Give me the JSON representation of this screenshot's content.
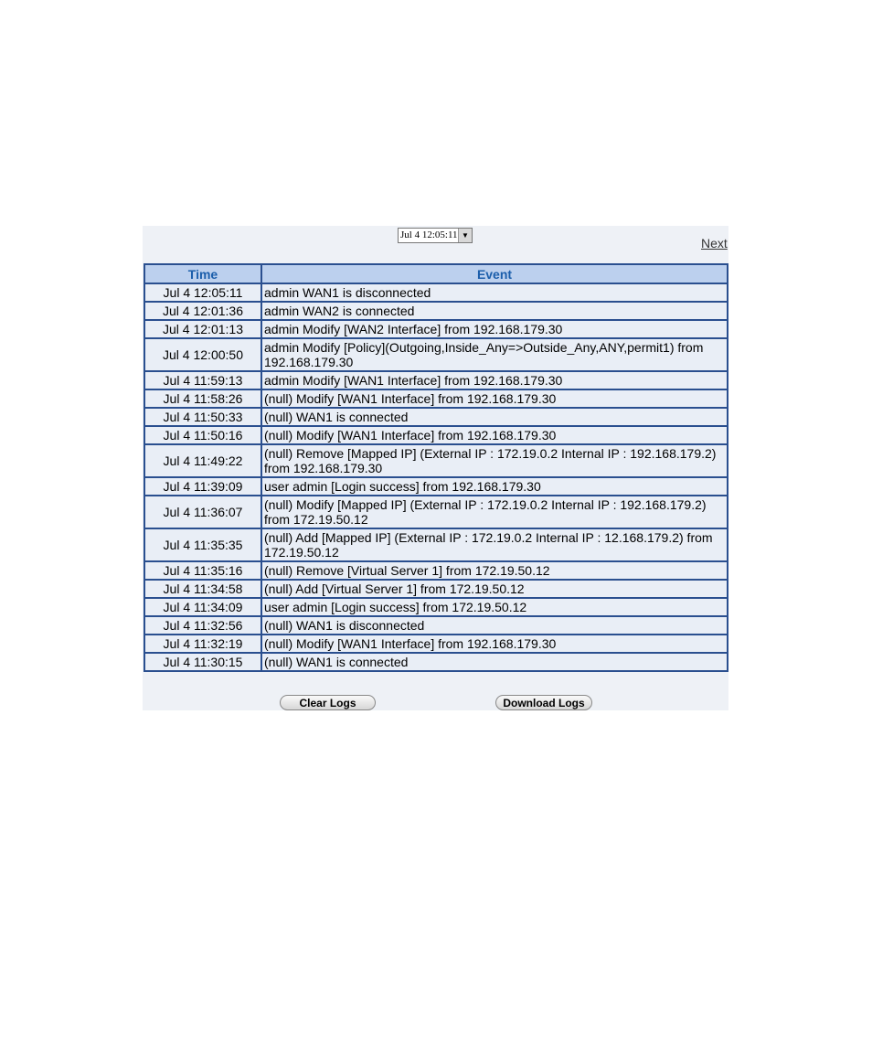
{
  "header": {
    "select": "Jul 4 12:05:11",
    "next": "Next"
  },
  "table": {
    "columns": [
      "Time",
      "Event"
    ],
    "rows": [
      [
        "Jul 4 12:05:11",
        "admin WAN1 is disconnected"
      ],
      [
        "Jul 4 12:01:36",
        "admin WAN2 is connected"
      ],
      [
        "Jul 4 12:01:13",
        "admin Modify [WAN2 Interface] from 192.168.179.30"
      ],
      [
        "Jul 4 12:00:50",
        "admin Modify [Policy](Outgoing,Inside_Any=>Outside_Any,ANY,permit1) from 192.168.179.30"
      ],
      [
        "Jul 4 11:59:13",
        "admin Modify [WAN1 Interface] from 192.168.179.30"
      ],
      [
        "Jul 4 11:58:26",
        "(null) Modify [WAN1 Interface] from 192.168.179.30"
      ],
      [
        "Jul 4 11:50:33",
        "(null) WAN1 is connected"
      ],
      [
        "Jul 4 11:50:16",
        "(null) Modify [WAN1 Interface] from 192.168.179.30"
      ],
      [
        "Jul 4 11:49:22",
        "(null) Remove [Mapped IP] (External IP : 172.19.0.2 Internal IP : 192.168.179.2) from 192.168.179.30"
      ],
      [
        "Jul 4 11:39:09",
        "user admin [Login success] from 192.168.179.30"
      ],
      [
        "Jul 4 11:36:07",
        "(null) Modify [Mapped IP] (External IP : 172.19.0.2 Internal IP : 192.168.179.2) from 172.19.50.12"
      ],
      [
        "Jul 4 11:35:35",
        "(null) Add [Mapped IP] (External IP : 172.19.0.2 Internal IP : 12.168.179.2) from 172.19.50.12"
      ],
      [
        "Jul 4 11:35:16",
        "(null) Remove [Virtual Server 1] from 172.19.50.12"
      ],
      [
        "Jul 4 11:34:58",
        "(null) Add [Virtual Server 1] from 172.19.50.12"
      ],
      [
        "Jul 4 11:34:09",
        "user admin [Login success] from 172.19.50.12"
      ],
      [
        "Jul 4 11:32:56",
        "(null) WAN1 is disconnected"
      ],
      [
        "Jul 4 11:32:19",
        "(null) Modify [WAN1 Interface] from 192.168.179.30"
      ],
      [
        "Jul 4 11:30:15",
        "(null) WAN1 is connected"
      ]
    ]
  },
  "buttons": {
    "clear": "Clear Logs",
    "download": "Download Logs"
  }
}
